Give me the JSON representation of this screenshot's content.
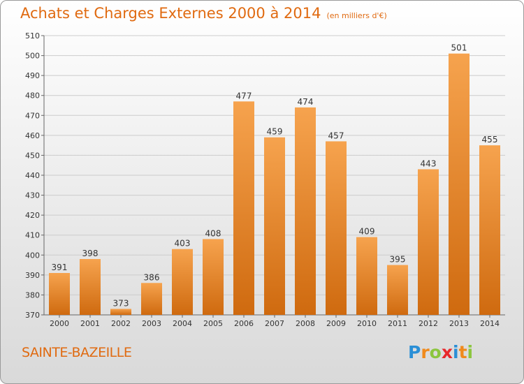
{
  "header": {
    "title": "Achats et Charges Externes 2000 à 2014",
    "subtitle": "(en milliers d'€)"
  },
  "footer": {
    "commune": "SAINTE-BAZEILLE",
    "logo_letters": [
      {
        "char": "P",
        "color": "#2a8fd6"
      },
      {
        "char": "r",
        "color": "#f08a1c"
      },
      {
        "char": "o",
        "color": "#8cc63f"
      },
      {
        "char": "x",
        "color": "#e8282b"
      },
      {
        "char": "i",
        "color": "#2a8fd6"
      },
      {
        "char": "t",
        "color": "#f08a1c"
      },
      {
        "char": "i",
        "color": "#8cc63f"
      }
    ]
  },
  "colors": {
    "bar_top": "#f6a34e",
    "bar_bottom": "#cf6a0f",
    "accent": "#e06a10",
    "grid": "#cccccc"
  },
  "chart_data": {
    "type": "bar",
    "categories": [
      "2000",
      "2001",
      "2002",
      "2003",
      "2004",
      "2005",
      "2006",
      "2007",
      "2008",
      "2009",
      "2010",
      "2011",
      "2012",
      "2013",
      "2014"
    ],
    "values": [
      391,
      398,
      373,
      386,
      403,
      408,
      477,
      459,
      474,
      457,
      409,
      395,
      443,
      501,
      455
    ],
    "title": "Achats et Charges Externes 2000 à 2014",
    "ylim": [
      370,
      510
    ],
    "yticks": [
      370,
      380,
      390,
      400,
      410,
      420,
      430,
      440,
      450,
      460,
      470,
      480,
      490,
      500,
      510
    ],
    "grid": true
  }
}
